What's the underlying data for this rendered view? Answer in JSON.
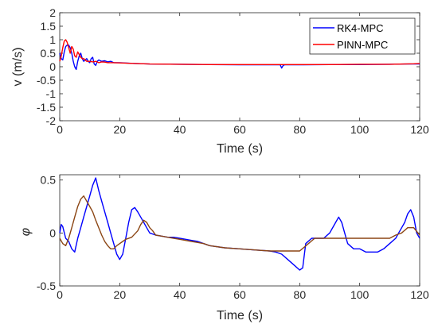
{
  "chart_data": [
    {
      "type": "line",
      "xlabel": "Time (s)",
      "ylabel": "v (m/s)",
      "xlim": [
        0,
        120
      ],
      "ylim": [
        -2,
        2
      ],
      "xticks": [
        "0",
        "20",
        "40",
        "60",
        "80",
        "100",
        "120"
      ],
      "yticks": [
        "2",
        "1.5",
        "1",
        "0.5",
        "0",
        "-0.5",
        "-1",
        "-1.5",
        "-2"
      ],
      "grid": false,
      "legend_position": "top-right",
      "series": [
        {
          "name": "RK4-MPC",
          "color": "#0000ff",
          "x": [
            0,
            0.5,
            1,
            1.5,
            2,
            2.5,
            3,
            3.5,
            4,
            4.5,
            5,
            5.5,
            6,
            6.5,
            7,
            7.5,
            8,
            8.5,
            9,
            9.5,
            10,
            10.5,
            11,
            11.5,
            12,
            12.5,
            13,
            14,
            15,
            16,
            17,
            18,
            20,
            25,
            30,
            40,
            50,
            60,
            70,
            73.5,
            74,
            74.5,
            75,
            80,
            90,
            100,
            110,
            115,
            118,
            120
          ],
          "y": [
            0.5,
            0.3,
            0.25,
            0.55,
            0.75,
            0.8,
            0.8,
            0.7,
            0.5,
            0.2,
            0.0,
            -0.1,
            0.2,
            0.4,
            0.5,
            0.3,
            0.2,
            0.25,
            0.3,
            0.2,
            0.15,
            0.3,
            0.35,
            0.1,
            0.05,
            0.2,
            0.25,
            0.2,
            0.22,
            0.18,
            0.2,
            0.15,
            0.15,
            0.12,
            0.1,
            0.09,
            0.08,
            0.07,
            0.07,
            0.07,
            -0.05,
            0.05,
            0.07,
            0.07,
            0.08,
            0.08,
            0.09,
            0.1,
            0.1,
            0.1
          ]
        },
        {
          "name": "PINN-MPC",
          "color": "#ff0000",
          "x": [
            0,
            0.5,
            1,
            1.5,
            2,
            2.5,
            3,
            3.5,
            4,
            4.5,
            5,
            5.5,
            6,
            6.5,
            7,
            7.5,
            8,
            8.5,
            9,
            10,
            11,
            12,
            13,
            14,
            15,
            16,
            18,
            20,
            25,
            30,
            40,
            50,
            60,
            70,
            80,
            90,
            100,
            110,
            115,
            118,
            120
          ],
          "y": [
            0.2,
            0.4,
            0.7,
            0.95,
            1.0,
            0.9,
            0.7,
            0.5,
            0.75,
            0.65,
            0.4,
            0.35,
            0.55,
            0.45,
            0.35,
            0.3,
            0.3,
            0.25,
            0.2,
            0.2,
            0.18,
            0.2,
            0.15,
            0.18,
            0.17,
            0.15,
            0.15,
            0.14,
            0.12,
            0.1,
            0.09,
            0.08,
            0.08,
            0.08,
            0.08,
            0.08,
            0.09,
            0.09,
            0.1,
            0.11,
            0.12
          ]
        }
      ]
    },
    {
      "type": "line",
      "xlabel": "Time (s)",
      "ylabel": "φ",
      "xlim": [
        0,
        120
      ],
      "ylim": [
        -0.5,
        0.55
      ],
      "xticks": [
        "0",
        "20",
        "40",
        "60",
        "80",
        "100",
        "120"
      ],
      "yticks": [
        "0.5",
        "0",
        "-0.5"
      ],
      "ytick_values": [
        0.5,
        0,
        -0.5
      ],
      "grid": false,
      "series": [
        {
          "name": "RK4-MPC",
          "color": "#0000ff",
          "x": [
            0,
            0.5,
            1,
            2,
            3,
            4,
            5,
            6,
            7,
            8,
            9,
            10,
            11,
            12,
            13,
            14,
            15,
            16,
            17,
            18,
            19,
            20,
            21,
            22,
            23,
            24,
            25,
            26,
            27,
            28,
            29,
            30,
            32,
            34,
            36,
            38,
            40,
            42,
            44,
            46,
            48,
            50,
            55,
            60,
            65,
            70,
            72,
            74,
            76,
            78,
            80,
            81,
            82,
            84,
            86,
            88,
            90,
            92,
            93,
            94,
            95,
            96,
            98,
            100,
            102,
            104,
            106,
            108,
            110,
            112,
            113,
            114,
            115,
            116,
            117,
            118,
            119,
            120
          ],
          "y": [
            0.0,
            0.08,
            0.06,
            -0.05,
            -0.08,
            -0.15,
            -0.18,
            -0.05,
            0.05,
            0.15,
            0.25,
            0.35,
            0.45,
            0.52,
            0.4,
            0.3,
            0.2,
            0.1,
            0.0,
            -0.1,
            -0.2,
            -0.25,
            -0.2,
            -0.05,
            0.1,
            0.22,
            0.24,
            0.2,
            0.15,
            0.1,
            0.05,
            0.0,
            -0.02,
            -0.03,
            -0.04,
            -0.04,
            -0.05,
            -0.06,
            -0.07,
            -0.08,
            -0.1,
            -0.12,
            -0.14,
            -0.15,
            -0.16,
            -0.17,
            -0.18,
            -0.2,
            -0.25,
            -0.3,
            -0.35,
            -0.33,
            -0.1,
            -0.05,
            -0.05,
            -0.05,
            0.0,
            0.1,
            0.15,
            0.1,
            0.0,
            -0.1,
            -0.15,
            -0.15,
            -0.18,
            -0.18,
            -0.18,
            -0.15,
            -0.1,
            -0.05,
            0.0,
            0.05,
            0.1,
            0.18,
            0.22,
            0.15,
            0.0,
            -0.05
          ]
        },
        {
          "name": "PINN-MPC",
          "color": "#8b4513",
          "x": [
            0,
            1,
            2,
            3,
            4,
            5,
            6,
            7,
            8,
            9,
            10,
            11,
            12,
            13,
            14,
            15,
            16,
            17,
            18,
            19,
            20,
            21,
            22,
            24,
            26,
            27,
            28,
            29,
            30,
            31,
            32,
            34,
            36,
            38,
            40,
            42,
            44,
            46,
            48,
            50,
            55,
            60,
            65,
            70,
            75,
            80,
            85,
            90,
            95,
            100,
            105,
            110,
            112,
            114,
            116,
            118,
            120
          ],
          "y": [
            -0.05,
            -0.1,
            -0.12,
            -0.05,
            0.05,
            0.15,
            0.25,
            0.32,
            0.35,
            0.3,
            0.25,
            0.2,
            0.12,
            0.05,
            -0.02,
            -0.08,
            -0.12,
            -0.15,
            -0.15,
            -0.12,
            -0.1,
            -0.08,
            -0.06,
            -0.04,
            0.02,
            0.08,
            0.12,
            0.1,
            0.05,
            0.02,
            -0.02,
            -0.03,
            -0.04,
            -0.05,
            -0.06,
            -0.07,
            -0.08,
            -0.09,
            -0.1,
            -0.12,
            -0.14,
            -0.15,
            -0.16,
            -0.17,
            -0.17,
            -0.17,
            -0.05,
            -0.05,
            -0.05,
            -0.05,
            -0.05,
            -0.05,
            -0.02,
            0.0,
            0.05,
            0.05,
            -0.02
          ]
        }
      ]
    }
  ]
}
